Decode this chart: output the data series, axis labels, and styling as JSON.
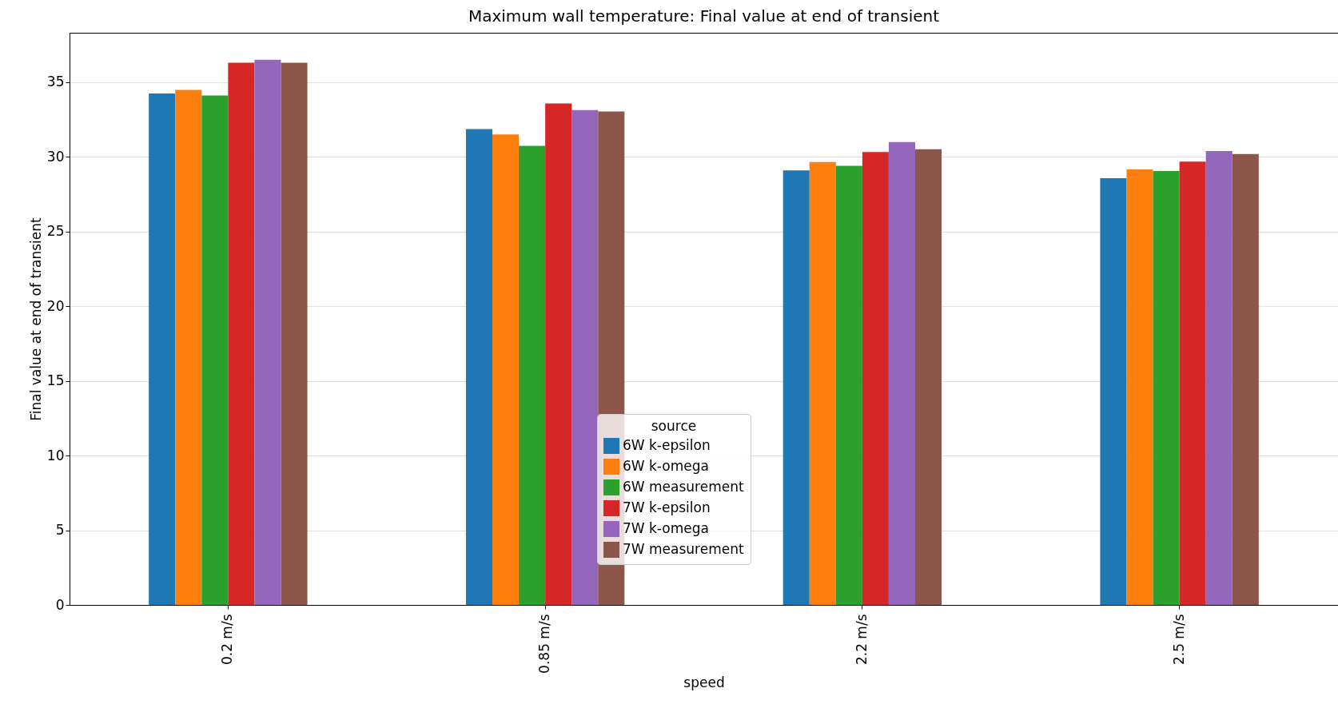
{
  "chart_data": {
    "type": "bar",
    "title": "Maximum wall temperature: Final value at end of transient",
    "xlabel": "speed",
    "ylabel": "Final value at end of transient",
    "legend_title": "source",
    "categories": [
      "0.2 m/s",
      "0.85 m/s",
      "2.2 m/s",
      "2.5 m/s"
    ],
    "series": [
      {
        "name": "6W k-epsilon",
        "color": "#1f77b4",
        "values": [
          34.24,
          31.85,
          29.09,
          28.57
        ]
      },
      {
        "name": "6W k-omega",
        "color": "#ff7f0e",
        "values": [
          34.47,
          31.49,
          29.65,
          29.15
        ]
      },
      {
        "name": "6W measurement",
        "color": "#2ca02c",
        "values": [
          34.1,
          30.73,
          29.39,
          29.04
        ]
      },
      {
        "name": "7W k-epsilon",
        "color": "#d62728",
        "values": [
          36.29,
          33.57,
          30.32,
          29.68
        ]
      },
      {
        "name": "7W k-omega",
        "color": "#9467bd",
        "values": [
          36.49,
          33.12,
          30.99,
          30.38
        ]
      },
      {
        "name": "7W measurement",
        "color": "#8c564b",
        "values": [
          36.29,
          33.03,
          30.5,
          30.18
        ]
      }
    ],
    "ylim": [
      0,
      38.3
    ],
    "yticks": [
      0,
      5,
      10,
      15,
      20,
      25,
      30,
      35
    ],
    "grid": "y",
    "legend": "bottom"
  }
}
